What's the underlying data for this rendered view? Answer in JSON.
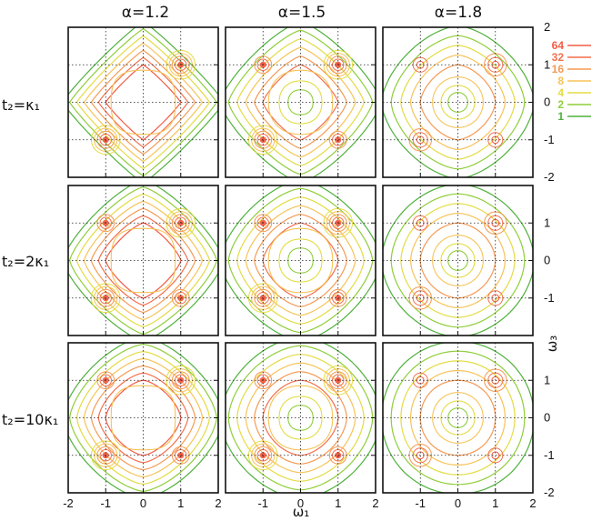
{
  "chart_data": {
    "type": "contour",
    "column_titles": [
      "α=1.2",
      "α=1.5",
      "α=1.8"
    ],
    "row_labels": [
      "t₂=κ₁",
      "t₂=2κ₁",
      "t₂=10κ₁"
    ],
    "xlabel": "ω₁",
    "ylabel": "ω₃",
    "xlim": [
      -2,
      2
    ],
    "ylim": [
      -2,
      2
    ],
    "x_ticks": [
      -2,
      -1,
      0,
      1,
      2
    ],
    "y_ticks": [
      -2,
      -1,
      0,
      1,
      2
    ],
    "grid": "dotted at -1, 0, 1",
    "contour_levels": [
      {
        "level": "64",
        "color": "#f25c45"
      },
      {
        "level": "32",
        "color": "#f36f4d"
      },
      {
        "level": "16",
        "color": "#f59a55"
      },
      {
        "level": "8",
        "color": "#f7c358"
      },
      {
        "level": "4",
        "color": "#e3dc43"
      },
      {
        "level": "2",
        "color": "#8fce3a"
      },
      {
        "level": "1",
        "color": "#4fb13c"
      }
    ],
    "peaks": [
      {
        "panel": "row1-col1",
        "omega1": 1,
        "omega3": 1
      },
      {
        "panel": "row1-col1",
        "omega1": -1,
        "omega3": -1
      },
      {
        "panel": "all-others",
        "omega1": [
          1,
          -1
        ],
        "omega3": [
          1,
          -1
        ]
      }
    ],
    "legend_position": "right of top-right panel"
  }
}
